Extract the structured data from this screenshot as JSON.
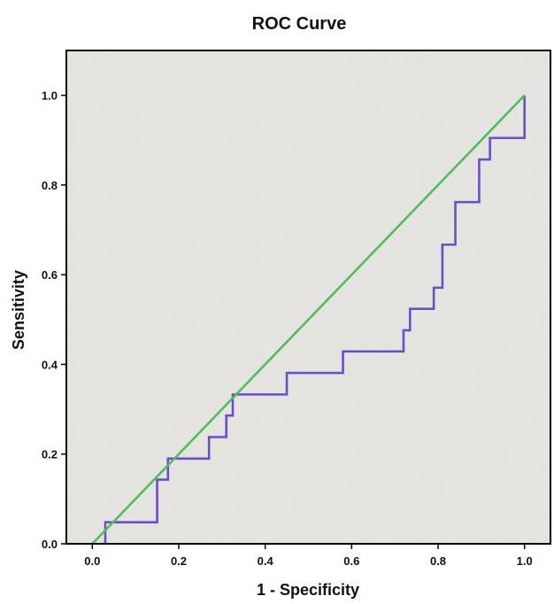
{
  "chart_data": {
    "type": "line",
    "title": "ROC Curve",
    "xlabel": "1 - Specificity",
    "ylabel": "Sensitivity",
    "xlim": [
      -0.06,
      1.06
    ],
    "ylim": [
      0.0,
      1.1
    ],
    "xticks": [
      0.0,
      0.2,
      0.4,
      0.6,
      0.8,
      1.0
    ],
    "yticks": [
      0.0,
      0.2,
      0.4,
      0.6,
      0.8,
      1.0
    ],
    "xtick_labels": [
      "0.0",
      "0.2",
      "0.4",
      "0.6",
      "0.8",
      "1.0"
    ],
    "ytick_labels": [
      "0.0",
      "0.2",
      "0.4",
      "0.6",
      "0.8",
      "1.0"
    ],
    "grid": false,
    "series": [
      {
        "kind": "step",
        "color": "#6a4fc9",
        "points": [
          [
            0.03,
            0.0
          ],
          [
            0.03,
            0.048
          ],
          [
            0.15,
            0.048
          ],
          [
            0.15,
            0.143
          ],
          [
            0.175,
            0.143
          ],
          [
            0.175,
            0.19
          ],
          [
            0.27,
            0.19
          ],
          [
            0.27,
            0.238
          ],
          [
            0.31,
            0.238
          ],
          [
            0.31,
            0.286
          ],
          [
            0.325,
            0.286
          ],
          [
            0.325,
            0.333
          ],
          [
            0.45,
            0.333
          ],
          [
            0.45,
            0.381
          ],
          [
            0.58,
            0.381
          ],
          [
            0.58,
            0.429
          ],
          [
            0.72,
            0.429
          ],
          [
            0.72,
            0.476
          ],
          [
            0.735,
            0.476
          ],
          [
            0.735,
            0.524
          ],
          [
            0.79,
            0.524
          ],
          [
            0.79,
            0.571
          ],
          [
            0.81,
            0.571
          ],
          [
            0.81,
            0.667
          ],
          [
            0.84,
            0.667
          ],
          [
            0.84,
            0.762
          ],
          [
            0.895,
            0.762
          ],
          [
            0.895,
            0.857
          ],
          [
            0.92,
            0.857
          ],
          [
            0.92,
            0.905
          ],
          [
            1.0,
            0.905
          ],
          [
            1.0,
            1.0
          ]
        ]
      },
      {
        "kind": "reference",
        "color": "#4dbf5b",
        "points": [
          [
            0.0,
            0.0
          ],
          [
            1.0,
            1.0
          ]
        ]
      }
    ]
  }
}
